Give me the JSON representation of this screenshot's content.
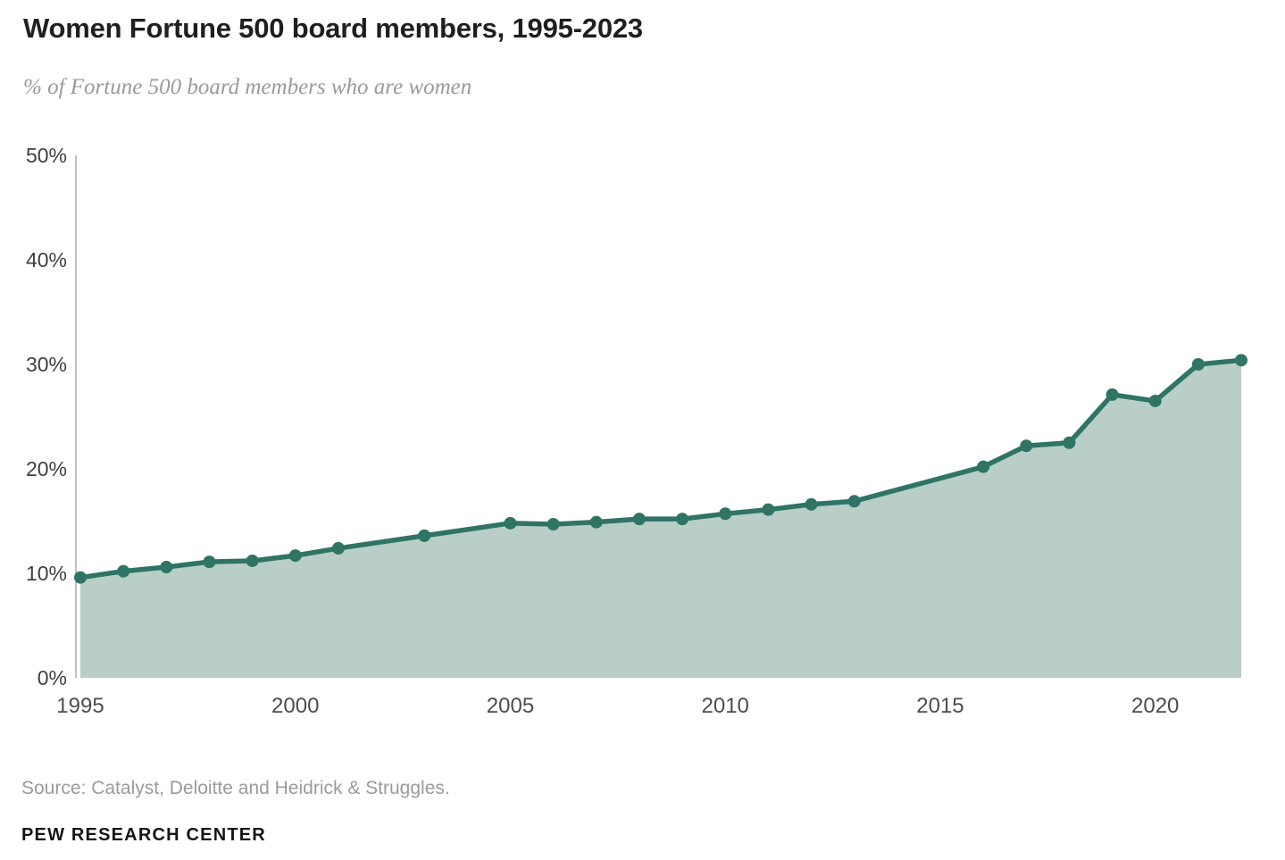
{
  "header": {
    "title": "Women Fortune 500 board members, 1995-2023",
    "subtitle": "% of Fortune 500 board members who are women"
  },
  "footer": {
    "source": "Source: Catalyst, Deloitte and Heidrick & Struggles.",
    "brand": "PEW RESEARCH CENTER"
  },
  "colors": {
    "line": "#2F7465",
    "fill": "#B8CEC6",
    "axis_line": "#ABABAB",
    "y_tick_label": "#3f3f3f",
    "x_tick_label": "#4d4d4d"
  },
  "chart_data": {
    "type": "area",
    "title": "Women Fortune 500 board members, 1995-2023",
    "series_name": "% of Fortune 500 board members who are women",
    "x": [
      1995,
      1996,
      1997,
      1998,
      1999,
      2000,
      2001,
      2003,
      2005,
      2006,
      2007,
      2008,
      2009,
      2010,
      2011,
      2012,
      2013,
      2016,
      2017,
      2018,
      2019,
      2020,
      2021,
      2022
    ],
    "values": [
      9.6,
      10.2,
      10.6,
      11.1,
      11.2,
      11.7,
      12.4,
      13.6,
      14.8,
      14.7,
      14.9,
      15.2,
      15.2,
      15.7,
      16.1,
      16.6,
      16.9,
      20.2,
      22.2,
      22.5,
      27.1,
      26.5,
      30.0,
      30.4
    ],
    "xlim": [
      1995,
      2022
    ],
    "ylim": [
      0,
      50
    ],
    "grid": false,
    "legend": "none",
    "marker": "circle",
    "y_axis": {
      "ticks": [
        0,
        10,
        20,
        30,
        40,
        50
      ],
      "labels": [
        "0%",
        "10%",
        "20%",
        "30%",
        "40%",
        "50%"
      ]
    },
    "x_axis": {
      "ticks": [
        1995,
        2000,
        2005,
        2010,
        2015,
        2020
      ],
      "labels": [
        "1995",
        "2000",
        "2005",
        "2010",
        "2015",
        "2020"
      ]
    }
  }
}
